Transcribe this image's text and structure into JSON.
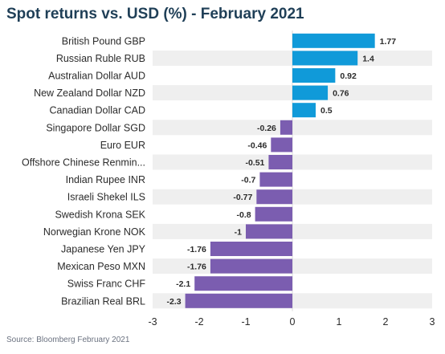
{
  "title": "Spot returns vs. USD (%) - February 2021",
  "source": "Source: Bloomberg February 2021",
  "colors": {
    "positive": "#109ad9",
    "negative": "#7b5db0",
    "band": "#efefef",
    "zero_line": "#d8d8d8"
  },
  "chart_data": {
    "type": "bar",
    "orientation": "horizontal",
    "title": "Spot returns vs. USD (%) - February 2021",
    "categories": [
      "British Pound GBP",
      "Russian Ruble RUB",
      "Australian Dollar AUD",
      "New Zealand Dollar NZD",
      "Canadian Dollar CAD",
      "Singapore Dollar SGD",
      "Euro EUR",
      "Offshore Chinese Renmin...",
      "Indian Rupee INR",
      "Israeli Shekel ILS",
      "Swedish Krona SEK",
      "Norwegian Krone NOK",
      "Japanese Yen JPY",
      "Mexican Peso MXN",
      "Swiss Franc CHF",
      "Brazilian Real BRL"
    ],
    "values": [
      1.77,
      1.4,
      0.92,
      0.76,
      0.5,
      -0.26,
      -0.46,
      -0.51,
      -0.7,
      -0.77,
      -0.8,
      -1,
      -1.76,
      -1.76,
      -2.1,
      -2.3
    ],
    "value_labels": [
      "1.77",
      "1.4",
      "0.92",
      "0.76",
      "0.5",
      "-0.26",
      "-0.46",
      "-0.51",
      "-0.7",
      "-0.77",
      "-0.8",
      "-1",
      "-1.76",
      "-1.76",
      "-2.1",
      "-2.3"
    ],
    "xlim": [
      -3,
      3
    ],
    "xticks": [
      "-3",
      "-2",
      "-1",
      "0",
      "1",
      "2",
      "3"
    ],
    "alternating_row_bands": true,
    "grid": false
  }
}
